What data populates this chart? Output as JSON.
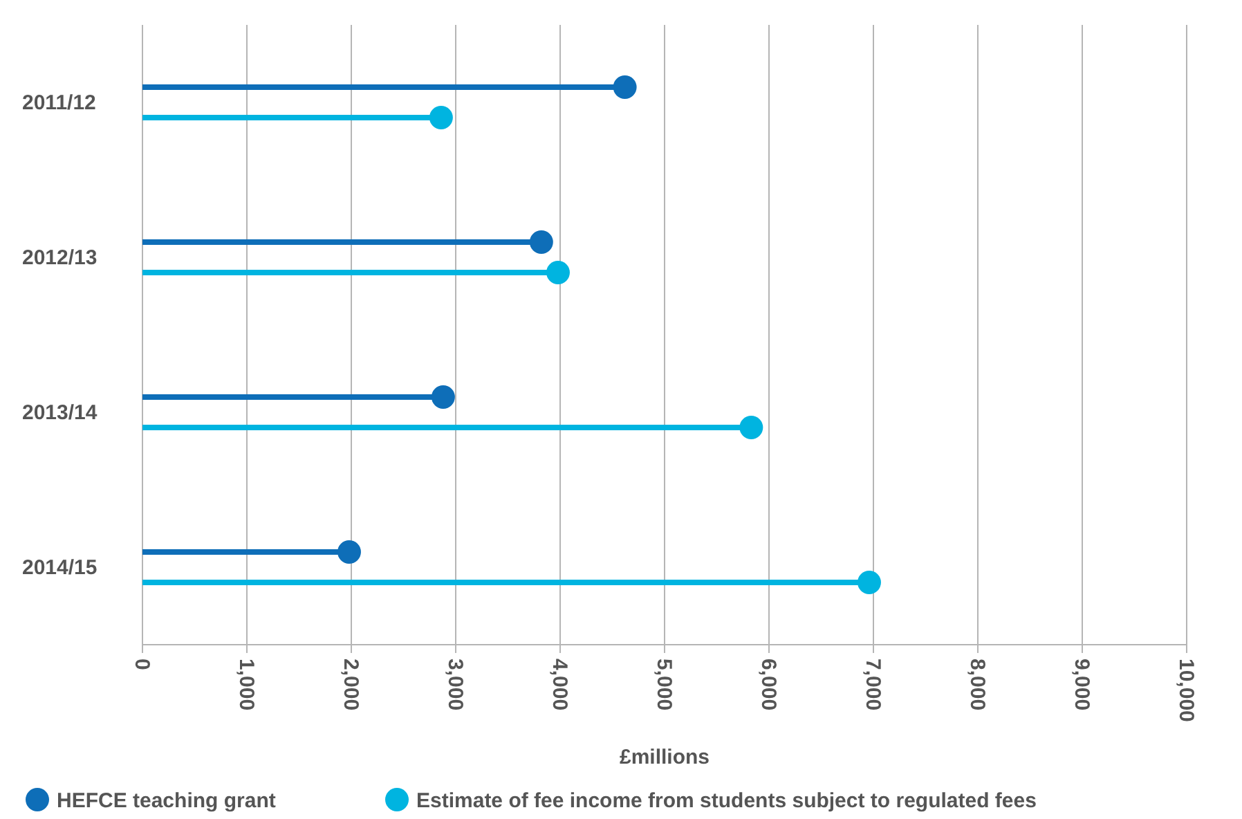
{
  "chart_data": {
    "type": "lollipop",
    "orientation": "horizontal",
    "xlabel": "£millions",
    "categories": [
      "2011/12",
      "2012/13",
      "2013/14",
      "2014/15"
    ],
    "series": [
      {
        "name": "HEFCE teaching grant",
        "color": "#0e6eb8",
        "values": [
          4620,
          3820,
          2880,
          1980
        ]
      },
      {
        "name": "Estimate of fee income from students subject to regulated fees",
        "color": "#00b4e0",
        "values": [
          2860,
          3980,
          5830,
          6960
        ]
      }
    ],
    "xlim": [
      0,
      10000
    ],
    "xticks": [
      {
        "value": 0,
        "label": "0"
      },
      {
        "value": 1000,
        "label": "1,000"
      },
      {
        "value": 2000,
        "label": "2,000"
      },
      {
        "value": 3000,
        "label": "3,000"
      },
      {
        "value": 4000,
        "label": "4,000"
      },
      {
        "value": 5000,
        "label": "5,000"
      },
      {
        "value": 6000,
        "label": "6,000"
      },
      {
        "value": 7000,
        "label": "7,000"
      },
      {
        "value": 8000,
        "label": "8,000"
      },
      {
        "value": 9000,
        "label": "9,000"
      },
      {
        "value": 10000,
        "label": "10,000"
      }
    ],
    "grid": "x",
    "legend": "bottom",
    "marker": "circle"
  }
}
